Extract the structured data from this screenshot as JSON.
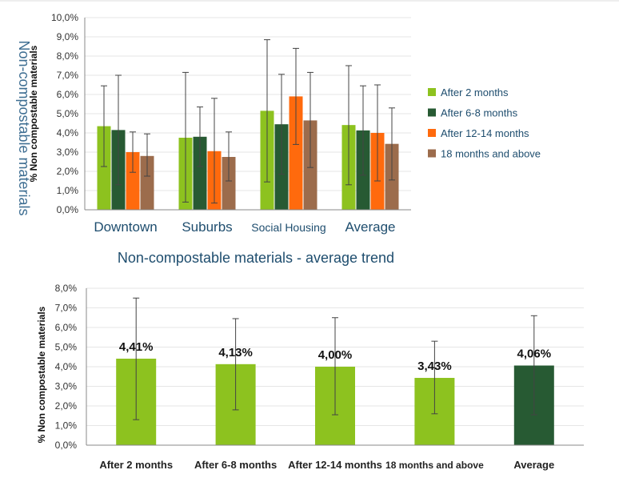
{
  "side_title": "Non-compostable materials",
  "chart_data": [
    {
      "type": "bar",
      "ylabel": "% Non compostable materials",
      "ylim": [
        0,
        10
      ],
      "yticks": [
        "0,0%",
        "1,0%",
        "2,0%",
        "3,0%",
        "4,0%",
        "5,0%",
        "6,0%",
        "7,0%",
        "8,0%",
        "9,0%",
        "10,0%"
      ],
      "categories": [
        "Downtown",
        "Suburbs",
        "Social Housing",
        "Average"
      ],
      "legend_position": "right",
      "series": [
        {
          "name": "After 2 months",
          "color": "#8dc21f",
          "values": [
            4.35,
            3.75,
            5.15,
            4.41
          ],
          "err_low": [
            2.25,
            0.4,
            1.45,
            1.3
          ],
          "err_high": [
            6.45,
            7.15,
            8.85,
            7.5
          ]
        },
        {
          "name": "After 6-8 months",
          "color": "#275a33",
          "values": [
            4.15,
            3.8,
            4.45,
            4.13
          ],
          "err_low": [
            1.3,
            2.25,
            1.85,
            1.8
          ],
          "err_high": [
            7.0,
            5.35,
            7.05,
            6.45
          ]
        },
        {
          "name": "After 12-14 months",
          "color": "#ff6a0d",
          "values": [
            3.0,
            3.05,
            5.9,
            4.0
          ],
          "err_low": [
            1.95,
            0.35,
            3.4,
            1.5
          ],
          "err_high": [
            4.05,
            5.8,
            8.4,
            6.5
          ]
        },
        {
          "name": "18 months and above",
          "color": "#9c6c4c",
          "values": [
            2.8,
            2.75,
            4.65,
            3.43
          ],
          "err_low": [
            1.75,
            1.5,
            2.2,
            1.55
          ],
          "err_high": [
            3.95,
            4.05,
            7.15,
            5.3
          ]
        }
      ]
    },
    {
      "type": "bar",
      "title": "Non-compostable materials - average trend",
      "ylabel": "% Non compostable materials",
      "ylim": [
        0,
        8
      ],
      "yticks": [
        "0,0%",
        "1,0%",
        "2,0%",
        "3,0%",
        "4,0%",
        "5,0%",
        "6,0%",
        "7,0%",
        "8,0%"
      ],
      "categories": [
        "After 2 months",
        "After 6-8 months",
        "After 12-14 months",
        "18 months and above",
        "Average"
      ],
      "values": [
        4.41,
        4.13,
        4.0,
        3.43,
        4.06
      ],
      "data_labels": [
        "4,41%",
        "4,13%",
        "4,00%",
        "3,43%",
        "4,06%"
      ],
      "colors": [
        "#8dc21f",
        "#8dc21f",
        "#8dc21f",
        "#8dc21f",
        "#275a33"
      ],
      "err_low": [
        1.3,
        1.8,
        1.55,
        1.6,
        1.55
      ],
      "err_high": [
        7.5,
        6.45,
        6.5,
        5.3,
        6.6
      ]
    }
  ]
}
